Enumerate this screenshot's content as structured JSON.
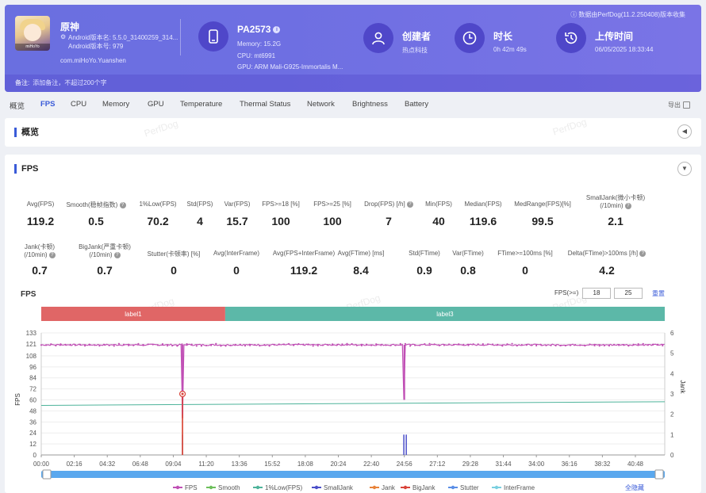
{
  "header": {
    "app_name": "原神",
    "android_version_name": "Android版本名: 5.5.0_31400259_314...",
    "android_version_code": "Android版本号: 979",
    "package": "com.miHoYo.Yuanshen",
    "app_icon_caption": "miHoYo",
    "device": "PA2573",
    "memory": "Memory: 15.2G",
    "cpu": "CPU: mt6991",
    "gpu": "GPU: ARM Mali-G925-Immortalis M...",
    "creator_label": "创建者",
    "creator_value": "热点科技",
    "duration_label": "时长",
    "duration_value": "0h 42m 49s",
    "upload_label": "上传时间",
    "upload_value": "06/05/2025 18:33:44",
    "source": "数据由PerfDog(11.2.250408)版本收集",
    "note_label": "备注:",
    "note_placeholder": "添加备注，不超过200个字"
  },
  "tabs": [
    "概览",
    "FPS",
    "CPU",
    "Memory",
    "GPU",
    "Temperature",
    "Thermal Status",
    "Network",
    "Brightness",
    "Battery"
  ],
  "active_tab": "FPS",
  "export_label": "导出",
  "overview": {
    "title": "概览"
  },
  "fps_section": {
    "title": "FPS"
  },
  "watermark": "PerfDog",
  "metrics_row1": [
    {
      "label": "Avg(FPS)",
      "value": "119.2"
    },
    {
      "label": "Smooth(稳帧指数)",
      "value": "0.5",
      "help": true
    },
    {
      "label": "1%Low(FPS)",
      "value": "70.2"
    },
    {
      "label": "Std(FPS)",
      "value": "4"
    },
    {
      "label": "Var(FPS)",
      "value": "15.7"
    },
    {
      "label": "FPS>=18 [%]",
      "value": "100"
    },
    {
      "label": "FPS>=25 [%]",
      "value": "100"
    },
    {
      "label": "Drop(FPS) [/h]",
      "value": "7",
      "help": true
    },
    {
      "label": "Min(FPS)",
      "value": "40"
    },
    {
      "label": "Median(FPS)",
      "value": "119.6"
    },
    {
      "label": "MedRange(FPS)[%]",
      "value": "99.5"
    },
    {
      "label": "SmallJank(微小卡顿)",
      "label2": "(/10min)",
      "value": "2.1",
      "help": true
    }
  ],
  "metrics_row2": [
    {
      "label": "Jank(卡顿)",
      "label2": "(/10min)",
      "value": "0.7",
      "help": true
    },
    {
      "label": "BigJank(严重卡顿)",
      "label2": "(/10min)",
      "value": "0.7",
      "help": true
    },
    {
      "label": "Stutter(卡顿率) [%]",
      "value": "0"
    },
    {
      "label": "Avg(InterFrame)",
      "value": "0"
    },
    {
      "label": "Avg(FPS+InterFrame)",
      "value": "119.2"
    },
    {
      "label": "Avg(FTime) [ms]",
      "value": "8.4"
    },
    {
      "label": "Std(FTime)",
      "value": "0.9"
    },
    {
      "label": "Var(FTime)",
      "value": "0.8"
    },
    {
      "label": "FTime>=100ms [%]",
      "value": "0"
    },
    {
      "label": "Delta(FTime)>100ms [/h]",
      "value": "4.2",
      "help": true
    }
  ],
  "chart_controls": {
    "title": "FPS",
    "threshold_label": "FPS(>=)",
    "threshold_1": "18",
    "threshold_2": "25",
    "reset_label": "重置",
    "legend_hide_all": "全隐藏"
  },
  "chart_data": {
    "type": "line",
    "title": "FPS",
    "ylabel": "FPS",
    "y2label": "Jank",
    "ylim": [
      0,
      133
    ],
    "y2lim": [
      0,
      6
    ],
    "y_ticks": [
      0,
      12,
      24,
      36,
      48,
      60,
      72,
      84,
      96,
      108,
      121,
      133
    ],
    "y2_ticks": [
      0,
      1,
      2,
      3,
      4,
      5,
      6
    ],
    "x_ticks": [
      "00:00",
      "02:16",
      "04:32",
      "06:48",
      "09:04",
      "11:20",
      "13:36",
      "15:52",
      "18:08",
      "20:24",
      "22:40",
      "24:56",
      "27:12",
      "29:28",
      "31:44",
      "34:00",
      "36:16",
      "38:32",
      "40:48"
    ],
    "x_range_seconds": [
      0,
      2569
    ],
    "labels": [
      {
        "name": "label1",
        "start_s": 0,
        "end_s": 758,
        "color": "#e06666"
      },
      {
        "name": "label3",
        "start_s": 758,
        "end_s": 2569,
        "color": "#5cb8a8"
      }
    ],
    "series": [
      {
        "name": "FPS",
        "color": "#c04fb5",
        "baseline": 120,
        "dips": [
          {
            "t": 582,
            "v": 40
          },
          {
            "t": 1496,
            "v": 60
          }
        ]
      },
      {
        "name": "Smooth",
        "color": "#6cbf5a"
      },
      {
        "name": "1%Low(FPS)",
        "color": "#4db39a",
        "points": [
          {
            "t": 0,
            "v": 54
          },
          {
            "t": 2569,
            "v": 58
          }
        ]
      },
      {
        "name": "SmallJank",
        "color": "#4b4fc9",
        "events": [
          {
            "t": 582,
            "v": 1
          },
          {
            "t": 1494,
            "v": 1
          },
          {
            "t": 1504,
            "v": 1
          }
        ]
      },
      {
        "name": "Jank",
        "color": "#e8833a",
        "events": [
          {
            "t": 582,
            "v": 2
          }
        ]
      },
      {
        "name": "BigJank",
        "color": "#d9443a",
        "events": [
          {
            "t": 582,
            "v": 3
          }
        ]
      },
      {
        "name": "Stutter",
        "color": "#5a8ee6"
      },
      {
        "name": "InterFrame",
        "color": "#7ad0e0"
      }
    ]
  }
}
